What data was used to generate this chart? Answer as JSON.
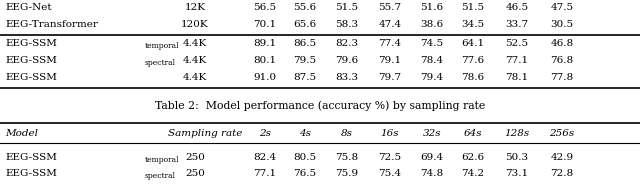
{
  "caption": "Table 2:  Model performance (accuracy %) by sampling rate",
  "header2": [
    "Model",
    "Sampling rate",
    "2s",
    "4s",
    "8s",
    "16s",
    "32s",
    "64s",
    "128s",
    "256s"
  ],
  "top_rows": [
    {
      "name": "EEG-Net",
      "sub": "",
      "params": "12K",
      "vals": [
        "56.5",
        "55.6",
        "51.5",
        "55.7",
        "51.6",
        "51.5",
        "46.5",
        "47.5"
      ]
    },
    {
      "name": "EEG-Transformer",
      "sub": "",
      "params": "120K",
      "vals": [
        "70.1",
        "65.6",
        "58.3",
        "47.4",
        "38.6",
        "34.5",
        "33.7",
        "30.5"
      ]
    }
  ],
  "ssm_rows": [
    {
      "name": "EEG-SSM",
      "sub": "temporal",
      "params": "4.4K",
      "vals": [
        "89.1",
        "86.5",
        "82.3",
        "77.4",
        "74.5",
        "64.1",
        "52.5",
        "46.8"
      ]
    },
    {
      "name": "EEG-SSM",
      "sub": "spectral",
      "params": "4.4K",
      "vals": [
        "80.1",
        "79.5",
        "79.6",
        "79.1",
        "78.4",
        "77.6",
        "77.1",
        "76.8"
      ]
    },
    {
      "name": "EEG-SSM",
      "sub": "",
      "params": "4.4K",
      "vals": [
        "91.0",
        "87.5",
        "83.3",
        "79.7",
        "79.4",
        "78.6",
        "78.1",
        "77.8"
      ]
    }
  ],
  "bot_rows": [
    {
      "name": "EEG-SSM",
      "sub": "temporal",
      "sr": "250",
      "vals": [
        "82.4",
        "80.5",
        "75.8",
        "72.5",
        "69.4",
        "62.6",
        "50.3",
        "42.9"
      ]
    },
    {
      "name": "EEG-SSM",
      "sub": "spectral",
      "sr": "250",
      "vals": [
        "77.1",
        "76.5",
        "75.9",
        "75.4",
        "74.8",
        "74.2",
        "73.1",
        "72.8"
      ]
    }
  ],
  "bg_color": "#ffffff",
  "text_color": "#000000",
  "fs": 7.5,
  "fs_sub": 5.5,
  "fs_cap": 7.8
}
